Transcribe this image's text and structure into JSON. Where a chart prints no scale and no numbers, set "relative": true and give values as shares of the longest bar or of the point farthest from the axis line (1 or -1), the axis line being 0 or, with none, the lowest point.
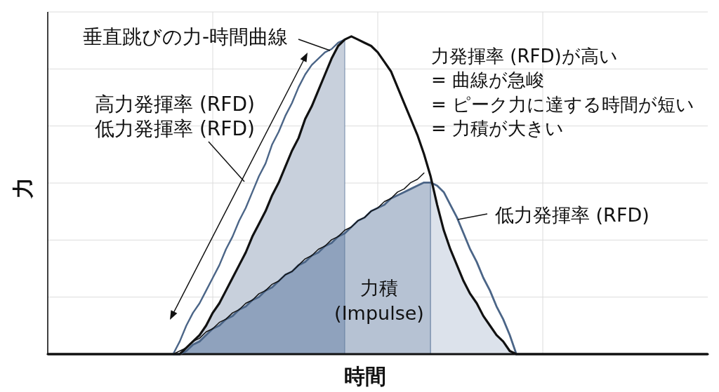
{
  "chart_data": {
    "type": "line",
    "relative": true,
    "grid": true,
    "xlabel": "時間",
    "ylabel": "力",
    "categories": [
      null,
      null,
      null,
      null,
      null,
      null,
      null,
      null,
      null,
      null,
      null,
      null,
      null,
      null,
      null,
      null,
      null,
      null,
      null,
      null,
      null,
      null,
      null,
      null,
      null,
      null,
      null,
      null,
      null,
      null,
      null,
      null,
      null,
      null,
      null,
      null,
      null,
      null,
      null,
      null,
      null,
      null,
      null,
      null,
      null,
      null,
      null,
      null,
      null,
      null,
      null,
      null,
      null,
      null,
      null,
      null,
      null,
      null,
      null,
      null,
      null,
      null,
      null,
      null,
      null,
      null,
      null,
      null,
      null,
      null,
      null,
      null,
      null,
      null,
      null,
      null,
      null,
      null,
      null,
      null,
      null,
      null,
      null,
      null,
      null,
      null,
      null,
      null,
      null,
      null,
      null,
      null,
      null,
      null,
      null,
      null,
      null,
      null,
      null,
      null,
      null
    ],
    "series": [
      {
        "type": "area",
        "color": "#c8d0dc",
        "values": [
          null,
          null,
          null,
          null,
          null,
          null,
          null,
          null,
          null,
          null,
          null,
          null,
          null,
          null,
          null,
          null,
          null,
          null,
          null,
          null,
          0,
          0.02,
          0.04,
          0.06,
          0.09,
          0.13,
          0.16,
          0.2,
          0.24,
          0.28,
          0.32,
          0.37,
          0.41,
          0.45,
          0.5,
          0.54,
          0.59,
          0.64,
          0.68,
          0.74,
          0.78,
          0.83,
          0.88,
          0.93,
          0.97,
          0.99,
          null,
          null,
          null,
          null,
          null,
          null,
          null,
          null,
          null,
          null,
          null,
          null,
          null,
          null,
          null,
          null,
          null,
          null,
          null,
          null,
          null,
          null,
          null,
          null,
          null,
          null,
          null,
          null,
          null,
          null,
          null,
          null,
          null,
          null,
          null,
          null,
          null,
          null,
          null,
          null,
          null,
          null,
          null,
          null,
          null,
          null,
          null,
          null,
          null,
          null,
          null,
          null,
          null,
          null,
          null
        ]
      },
      {
        "type": "area",
        "color": "#8fa2bd",
        "values": [
          null,
          null,
          null,
          null,
          null,
          null,
          null,
          null,
          null,
          null,
          null,
          null,
          null,
          null,
          null,
          null,
          null,
          null,
          null,
          null,
          0,
          0.01,
          0.03,
          0.04,
          0.06,
          0.08,
          0.09,
          0.11,
          0.12,
          0.14,
          0.15,
          0.17,
          0.18,
          0.2,
          0.21,
          0.23,
          0.25,
          0.26,
          0.28,
          0.29,
          0.31,
          0.32,
          0.34,
          0.35,
          0.37,
          0.38,
          null,
          null,
          null,
          null,
          null,
          null,
          null,
          null,
          null,
          null,
          null,
          null,
          null,
          null,
          null,
          null,
          null,
          null,
          null,
          null,
          null,
          null,
          null,
          null,
          null,
          null,
          null,
          null,
          null,
          null,
          null,
          null,
          null,
          null,
          null,
          null,
          null,
          null,
          null,
          null,
          null,
          null,
          null,
          null,
          null,
          null,
          null,
          null,
          null,
          null,
          null,
          null,
          null,
          null,
          null
        ]
      },
      {
        "type": "area",
        "color": "#b6c2d3",
        "values": [
          null,
          null,
          null,
          null,
          null,
          null,
          null,
          null,
          null,
          null,
          null,
          null,
          null,
          null,
          null,
          null,
          null,
          null,
          null,
          null,
          null,
          null,
          null,
          null,
          null,
          null,
          null,
          null,
          null,
          null,
          null,
          null,
          null,
          null,
          null,
          null,
          null,
          null,
          null,
          null,
          null,
          null,
          null,
          null,
          null,
          0.38,
          0.4,
          0.42,
          0.43,
          0.45,
          0.46,
          0.47,
          0.49,
          0.5,
          0.51,
          0.52,
          0.53,
          0.54,
          0.54,
          null,
          null,
          null,
          null,
          null,
          null,
          null,
          null,
          null,
          null,
          null,
          null,
          null,
          null,
          null,
          null,
          null,
          null,
          null,
          null,
          null,
          null,
          null,
          null,
          null,
          null,
          null,
          null,
          null,
          null,
          null,
          null,
          null,
          null,
          null,
          null,
          null,
          null,
          null,
          null,
          null,
          null
        ]
      },
      {
        "type": "area",
        "color": "#dce2eb",
        "values": [
          null,
          null,
          null,
          null,
          null,
          null,
          null,
          null,
          null,
          null,
          null,
          null,
          null,
          null,
          null,
          null,
          null,
          null,
          null,
          null,
          null,
          null,
          null,
          null,
          null,
          null,
          null,
          null,
          null,
          null,
          null,
          null,
          null,
          null,
          null,
          null,
          null,
          null,
          null,
          null,
          null,
          null,
          null,
          null,
          null,
          null,
          null,
          null,
          null,
          null,
          null,
          null,
          null,
          null,
          null,
          null,
          null,
          null,
          0.56,
          0.47,
          0.39,
          0.33,
          0.28,
          0.23,
          0.19,
          0.16,
          0.12,
          0.09,
          0.06,
          0.04,
          0.01,
          0,
          null,
          null,
          null,
          null,
          null,
          null,
          null,
          null,
          null,
          null,
          null,
          null,
          null,
          null,
          null,
          null,
          null,
          null,
          null,
          null,
          null,
          null,
          null,
          null,
          null,
          null,
          null,
          null,
          null
        ]
      },
      {
        "type": "line",
        "color": "#4b6587",
        "values": [
          null,
          null,
          null,
          null,
          null,
          null,
          null,
          null,
          null,
          null,
          null,
          null,
          null,
          null,
          null,
          null,
          null,
          null,
          null,
          0,
          0.04,
          0.09,
          0.13,
          0.16,
          0.2,
          0.24,
          0.28,
          0.33,
          0.37,
          0.42,
          0.46,
          0.51,
          0.56,
          0.6,
          0.66,
          0.7,
          0.75,
          0.79,
          0.84,
          0.88,
          0.91,
          0.93,
          0.95,
          0.96,
          0.98,
          0.99,
          null,
          null,
          null,
          null,
          null,
          null,
          null,
          null,
          null,
          null,
          null,
          null,
          null,
          null,
          null,
          null,
          null,
          null,
          null,
          null,
          null,
          null,
          null,
          null,
          null,
          null,
          null,
          null,
          null,
          null,
          null,
          null,
          null,
          null,
          null,
          null,
          null,
          null,
          null,
          null,
          null,
          null,
          null,
          null,
          null,
          null,
          null,
          null,
          null,
          null,
          null,
          null,
          null,
          null,
          null
        ]
      },
      {
        "type": "line",
        "color": "#4b6587",
        "values": [
          null,
          null,
          null,
          null,
          null,
          null,
          null,
          null,
          null,
          null,
          null,
          null,
          null,
          null,
          null,
          null,
          null,
          null,
          null,
          0,
          0,
          0.01,
          0.03,
          0.04,
          0.06,
          0.08,
          0.09,
          0.11,
          0.12,
          0.14,
          0.15,
          0.17,
          0.18,
          0.2,
          0.21,
          0.23,
          0.25,
          0.26,
          0.28,
          0.29,
          0.31,
          0.32,
          0.34,
          0.35,
          0.37,
          0.38,
          0.4,
          0.42,
          0.43,
          0.45,
          0.46,
          0.47,
          0.49,
          0.5,
          0.51,
          0.52,
          0.53,
          0.54,
          0.54,
          0.53,
          0.51,
          0.47,
          0.43,
          0.38,
          0.33,
          0.29,
          0.24,
          0.2,
          0.15,
          0.11,
          0.06,
          0,
          null,
          null,
          null,
          null,
          null,
          null,
          null,
          null,
          null,
          null,
          null,
          null,
          null,
          null,
          null,
          null,
          null,
          null,
          null,
          null,
          null,
          null,
          null,
          null,
          null,
          null,
          null,
          null,
          null
        ]
      },
      {
        "type": "line",
        "color": "#111111",
        "values": [
          null,
          null,
          null,
          null,
          null,
          null,
          null,
          null,
          null,
          null,
          null,
          null,
          null,
          null,
          null,
          null,
          null,
          null,
          null,
          0,
          0.01,
          0.02,
          0.04,
          0.05,
          0.07,
          0.08,
          0.1,
          0.11,
          0.13,
          0.14,
          0.16,
          0.17,
          0.19,
          0.2,
          0.22,
          0.23,
          0.25,
          0.26,
          0.28,
          0.3,
          0.31,
          0.33,
          0.34,
          0.36,
          0.37,
          0.39,
          0.4,
          0.42,
          0.43,
          0.45,
          0.46,
          0.48,
          0.49,
          0.51,
          0.52,
          0.54,
          0.55,
          0.57,
          null,
          null,
          null,
          null,
          null,
          null,
          null,
          null,
          null,
          null,
          null,
          null,
          null,
          null,
          null,
          null,
          null,
          null,
          null,
          null,
          null,
          null,
          null,
          null,
          null,
          null,
          null,
          null,
          null,
          null,
          null,
          null,
          null,
          null,
          null,
          null,
          null,
          null,
          null,
          null,
          null,
          null,
          null
        ]
      },
      {
        "type": "line",
        "color": "#111111",
        "values": [
          0,
          0,
          0,
          0,
          0,
          0,
          0,
          0,
          0,
          0,
          0,
          0,
          0,
          0,
          0,
          0,
          0,
          0,
          0,
          0,
          0,
          0.02,
          0.04,
          0.06,
          0.09,
          0.13,
          0.16,
          0.2,
          0.24,
          0.28,
          0.32,
          0.37,
          0.41,
          0.45,
          0.5,
          0.54,
          0.59,
          0.64,
          0.68,
          0.74,
          0.78,
          0.83,
          0.88,
          0.93,
          0.97,
          0.99,
          1,
          0.99,
          0.98,
          0.97,
          0.95,
          0.92,
          0.89,
          0.84,
          0.79,
          0.74,
          0.69,
          0.63,
          0.56,
          0.47,
          0.39,
          0.33,
          0.28,
          0.23,
          0.19,
          0.16,
          0.12,
          0.09,
          0.06,
          0.04,
          0.01,
          0,
          0,
          0,
          0,
          0,
          0,
          0,
          0,
          0,
          0,
          0,
          0,
          0,
          0,
          0,
          0,
          0,
          0,
          0,
          0,
          0,
          0,
          0,
          0,
          0,
          0,
          0,
          0,
          0,
          0
        ]
      }
    ],
    "annotations": [
      "垂直跳びの力-時間曲線",
      "高力発揮率 (RFD)",
      "低力発揮率 (RFD)",
      "力発揮率 (RFD)が高い",
      "= 曲線が急峻",
      "= ピーク力に達する時間が短い",
      "= 力積が大きい",
      "低力発揮率 (RFD)",
      "力積",
      "(Impulse)"
    ]
  }
}
